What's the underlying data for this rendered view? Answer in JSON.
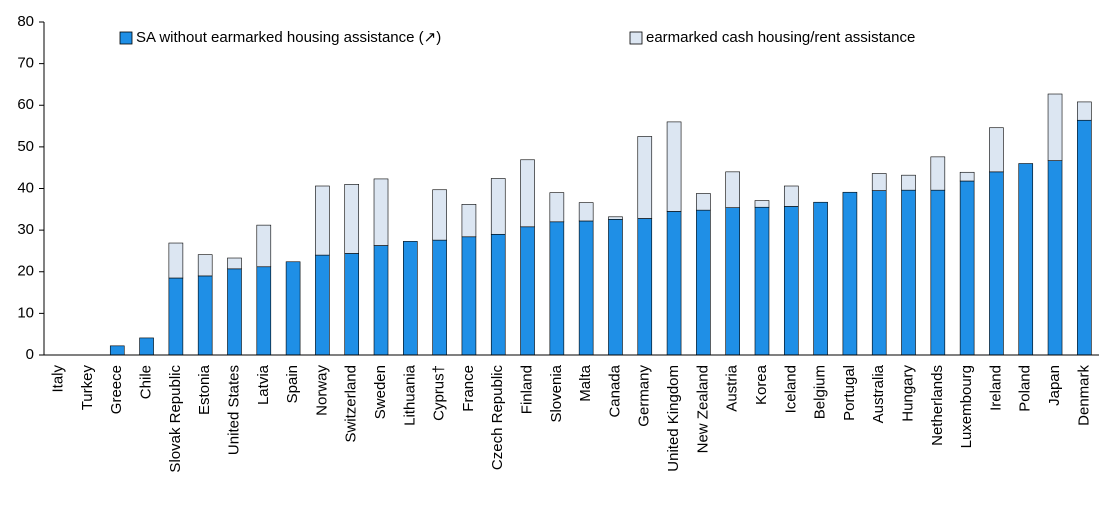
{
  "chart_data": {
    "type": "stacked_bar",
    "categories": [
      "Italy",
      "Turkey",
      "Greece",
      "Chile",
      "Slovak Republic",
      "Estonia",
      "United States",
      "Latvia",
      "Spain",
      "Norway",
      "Switzerland",
      "Sweden",
      "Lithuania",
      "Cyprus†",
      "France",
      "Czech Republic",
      "Finland",
      "Slovenia",
      "Malta",
      "Canada",
      "Germany",
      "United Kingdom",
      "New Zealand",
      "Austria",
      "Korea",
      "Iceland",
      "Belgium",
      "Portugal",
      "Australia",
      "Hungary",
      "Netherlands",
      "Luxembourg",
      "Ireland",
      "Poland",
      "Japan",
      "Denmark"
    ],
    "series": [
      {
        "name": "SA without earmarked housing assistance (↗)",
        "color": "#1f8fe6",
        "values": [
          0,
          0,
          2.2,
          4.1,
          18.5,
          19,
          20.7,
          21.2,
          22.4,
          24,
          24.4,
          26.3,
          27.3,
          27.6,
          28.4,
          29,
          30.8,
          32,
          32.2,
          32.6,
          32.8,
          34.5,
          34.8,
          35.4,
          35.5,
          35.7,
          36.7,
          39.1,
          39.5,
          39.6,
          39.6,
          41.8,
          44,
          46,
          46.7,
          56.4
        ]
      },
      {
        "name": "earmarked cash housing/rent assistance",
        "color": "#dce6f2",
        "values": [
          0,
          0,
          0,
          0,
          8.4,
          5.1,
          2.6,
          10,
          0,
          16.6,
          16.6,
          16,
          0,
          12.1,
          7.8,
          13.4,
          16.1,
          7,
          4.4,
          0.6,
          19.7,
          21.5,
          4,
          8.6,
          1.6,
          4.9,
          0,
          0,
          4.1,
          3.6,
          8,
          2.1,
          10.6,
          0,
          16,
          4.4
        ]
      }
    ],
    "ylim": [
      0,
      80
    ],
    "yticks": [
      0,
      10,
      20,
      30,
      40,
      50,
      60,
      70,
      80
    ],
    "grid": false,
    "legend": "top"
  }
}
